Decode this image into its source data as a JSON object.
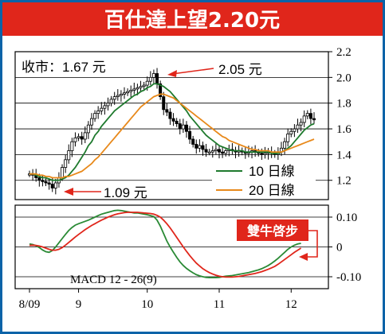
{
  "title": "百仕達上望2.20元",
  "colors": {
    "title_bg": "#e0261b",
    "frame": "#0b63a8",
    "ma10": "#1f7a2e",
    "ma20": "#e8891b",
    "macd_line": "#2a8a35",
    "signal_line": "#e0261b",
    "arrow": "#e0261b",
    "badge_bg": "#e0261b",
    "candle": "#000000"
  },
  "chart_data": [
    {
      "type": "candlestick",
      "title": "",
      "annotations": [
        {
          "text": "收市：1.67 元",
          "kind": "label"
        },
        {
          "text": "2.05 元",
          "kind": "arrow",
          "x": 38,
          "y": 2.05
        },
        {
          "text": "1.09 元",
          "kind": "arrow",
          "x": 7,
          "y": 1.09
        }
      ],
      "x_ticks": [
        {
          "label": "8/09",
          "x": 0
        },
        {
          "label": "9",
          "x": 15
        },
        {
          "label": "10",
          "x": 36
        },
        {
          "label": "11",
          "x": 58
        },
        {
          "label": "12",
          "x": 80
        }
      ],
      "y_ticks": [
        1.2,
        1.4,
        1.6,
        1.8,
        2.0,
        2.2
      ],
      "ylim": [
        1.05,
        2.2
      ],
      "xlim": [
        0,
        87
      ],
      "closes": [
        1.25,
        1.24,
        1.22,
        1.2,
        1.19,
        1.18,
        1.17,
        1.14,
        1.18,
        1.22,
        1.3,
        1.36,
        1.43,
        1.5,
        1.53,
        1.54,
        1.52,
        1.57,
        1.63,
        1.68,
        1.72,
        1.74,
        1.76,
        1.78,
        1.8,
        1.83,
        1.85,
        1.86,
        1.87,
        1.88,
        1.89,
        1.9,
        1.91,
        1.92,
        1.93,
        1.94,
        1.97,
        2.0,
        2.03,
        1.95,
        1.85,
        1.75,
        1.73,
        1.68,
        1.66,
        1.64,
        1.6,
        1.63,
        1.58,
        1.52,
        1.48,
        1.45,
        1.47,
        1.44,
        1.42,
        1.42,
        1.43,
        1.44,
        1.42,
        1.41,
        1.43,
        1.44,
        1.43,
        1.42,
        1.43,
        1.42,
        1.41,
        1.42,
        1.43,
        1.42,
        1.41,
        1.4,
        1.41,
        1.42,
        1.41,
        1.4,
        1.42,
        1.45,
        1.5,
        1.56,
        1.58,
        1.6,
        1.63,
        1.65,
        1.7,
        1.72,
        1.68,
        1.67
      ],
      "series": [
        {
          "name": "10 日線",
          "values": [
            1.25,
            1.25,
            1.24,
            1.23,
            1.22,
            1.22,
            1.21,
            1.2,
            1.2,
            1.2,
            1.21,
            1.22,
            1.24,
            1.27,
            1.3,
            1.34,
            1.38,
            1.42,
            1.47,
            1.5,
            1.55,
            1.58,
            1.62,
            1.65,
            1.68,
            1.71,
            1.74,
            1.76,
            1.78,
            1.8,
            1.82,
            1.84,
            1.86,
            1.87,
            1.89,
            1.9,
            1.92,
            1.93,
            1.95,
            1.95,
            1.94,
            1.93,
            1.91,
            1.89,
            1.86,
            1.83,
            1.8,
            1.77,
            1.74,
            1.7,
            1.67,
            1.64,
            1.61,
            1.58,
            1.55,
            1.53,
            1.51,
            1.49,
            1.47,
            1.46,
            1.45,
            1.44,
            1.43,
            1.43,
            1.43,
            1.43,
            1.42,
            1.42,
            1.42,
            1.42,
            1.42,
            1.42,
            1.42,
            1.42,
            1.41,
            1.41,
            1.41,
            1.42,
            1.43,
            1.45,
            1.47,
            1.5,
            1.53,
            1.56,
            1.59,
            1.61,
            1.63,
            1.64
          ]
        },
        {
          "name": "20 日線",
          "values": [
            1.25,
            1.25,
            1.25,
            1.24,
            1.24,
            1.23,
            1.23,
            1.22,
            1.22,
            1.22,
            1.22,
            1.23,
            1.23,
            1.24,
            1.25,
            1.26,
            1.27,
            1.29,
            1.31,
            1.33,
            1.36,
            1.38,
            1.41,
            1.44,
            1.47,
            1.5,
            1.53,
            1.56,
            1.59,
            1.62,
            1.65,
            1.68,
            1.71,
            1.74,
            1.77,
            1.79,
            1.81,
            1.83,
            1.85,
            1.86,
            1.87,
            1.87,
            1.86,
            1.85,
            1.84,
            1.82,
            1.8,
            1.78,
            1.76,
            1.74,
            1.72,
            1.7,
            1.68,
            1.66,
            1.64,
            1.62,
            1.6,
            1.58,
            1.56,
            1.54,
            1.53,
            1.51,
            1.5,
            1.49,
            1.48,
            1.47,
            1.46,
            1.45,
            1.44,
            1.44,
            1.43,
            1.43,
            1.43,
            1.43,
            1.42,
            1.42,
            1.42,
            1.42,
            1.43,
            1.44,
            1.45,
            1.46,
            1.47,
            1.48,
            1.49,
            1.5,
            1.51,
            1.52
          ]
        }
      ]
    },
    {
      "type": "line",
      "title": "",
      "label": "MACD 12 - 26(9)",
      "badge": "雙牛啓步",
      "y_ticks": [
        {
          "label": "0.10",
          "value": 0.1
        },
        {
          "label": "0",
          "value": 0
        },
        {
          "label": "-0.10",
          "value": -0.1
        }
      ],
      "ylim": [
        -0.14,
        0.14
      ],
      "series": [
        {
          "name": "MACD",
          "values": [
            0.01,
            0.008,
            0.004,
            -0.002,
            -0.01,
            -0.016,
            -0.018,
            -0.012,
            0.0,
            0.014,
            0.028,
            0.042,
            0.055,
            0.065,
            0.073,
            0.078,
            0.082,
            0.086,
            0.09,
            0.095,
            0.1,
            0.105,
            0.11,
            0.113,
            0.116,
            0.119,
            0.122,
            0.123,
            0.122,
            0.12,
            0.118,
            0.116,
            0.114,
            0.114,
            0.112,
            0.11,
            0.108,
            0.105,
            0.102,
            0.09,
            0.07,
            0.045,
            0.02,
            0.0,
            -0.018,
            -0.035,
            -0.05,
            -0.062,
            -0.072,
            -0.08,
            -0.087,
            -0.093,
            -0.097,
            -0.1,
            -0.102,
            -0.103,
            -0.103,
            -0.103,
            -0.102,
            -0.1,
            -0.098,
            -0.097,
            -0.096,
            -0.094,
            -0.092,
            -0.09,
            -0.088,
            -0.086,
            -0.083,
            -0.08,
            -0.077,
            -0.073,
            -0.068,
            -0.062,
            -0.055,
            -0.047,
            -0.038,
            -0.028,
            -0.018,
            -0.008,
            0.0,
            0.006,
            0.01,
            0.012
          ]
        },
        {
          "name": "Signal",
          "values": [
            0.005,
            0.006,
            0.005,
            0.003,
            0.0,
            -0.004,
            -0.008,
            -0.011,
            -0.011,
            -0.008,
            -0.002,
            0.006,
            0.015,
            0.024,
            0.033,
            0.042,
            0.05,
            0.058,
            0.065,
            0.072,
            0.078,
            0.084,
            0.09,
            0.095,
            0.1,
            0.104,
            0.108,
            0.111,
            0.113,
            0.115,
            0.116,
            0.116,
            0.116,
            0.116,
            0.115,
            0.114,
            0.113,
            0.112,
            0.11,
            0.106,
            0.1,
            0.09,
            0.078,
            0.064,
            0.048,
            0.032,
            0.016,
            0.0,
            -0.015,
            -0.029,
            -0.042,
            -0.054,
            -0.064,
            -0.073,
            -0.08,
            -0.086,
            -0.091,
            -0.095,
            -0.098,
            -0.1,
            -0.101,
            -0.101,
            -0.101,
            -0.1,
            -0.099,
            -0.097,
            -0.095,
            -0.093,
            -0.091,
            -0.089,
            -0.086,
            -0.083,
            -0.079,
            -0.075,
            -0.07,
            -0.065,
            -0.058,
            -0.05,
            -0.042,
            -0.034,
            -0.026,
            -0.018,
            -0.011,
            -0.004
          ]
        }
      ]
    }
  ]
}
